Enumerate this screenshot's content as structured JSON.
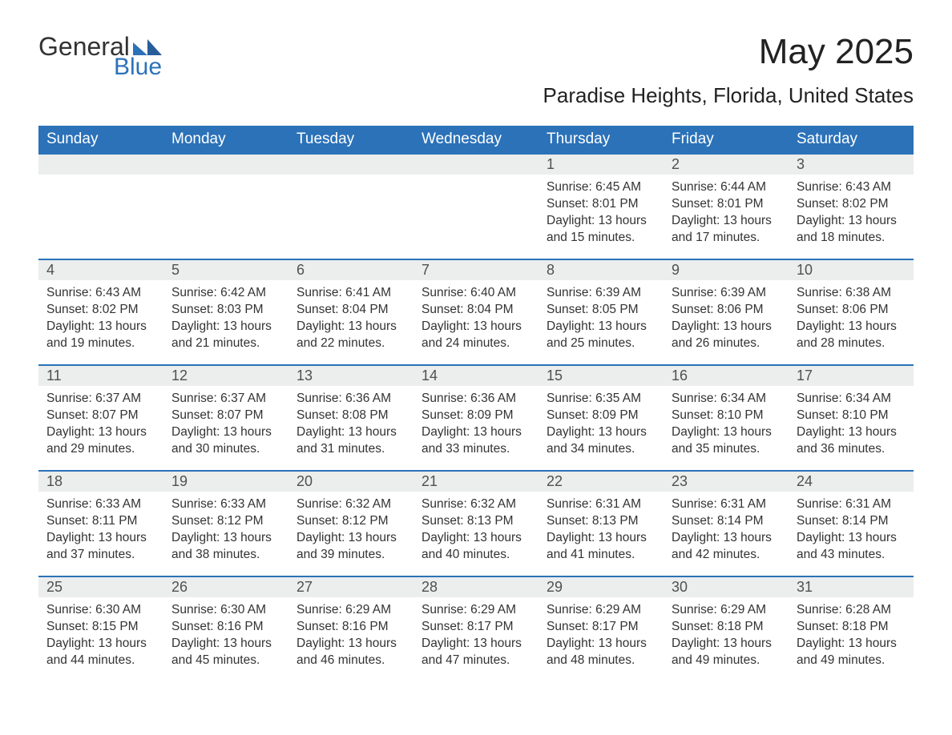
{
  "brand": {
    "word1": "General",
    "word2": "Blue",
    "colors": {
      "accent": "#2b72b9",
      "mark": "#275e99",
      "text": "#333333"
    }
  },
  "title": "May 2025",
  "location": "Paradise Heights, Florida, United States",
  "weekdays": [
    "Sunday",
    "Monday",
    "Tuesday",
    "Wednesday",
    "Thursday",
    "Friday",
    "Saturday"
  ],
  "calendar": {
    "header_bg": "#2b72b9",
    "header_fg": "#ffffff",
    "daynum_bg": "#eceded",
    "row_border": "#2b72b9"
  },
  "weeks": [
    [
      null,
      null,
      null,
      null,
      {
        "n": "1",
        "sunrise": "Sunrise: 6:45 AM",
        "sunset": "Sunset: 8:01 PM",
        "dl1": "Daylight: 13 hours",
        "dl2": "and 15 minutes."
      },
      {
        "n": "2",
        "sunrise": "Sunrise: 6:44 AM",
        "sunset": "Sunset: 8:01 PM",
        "dl1": "Daylight: 13 hours",
        "dl2": "and 17 minutes."
      },
      {
        "n": "3",
        "sunrise": "Sunrise: 6:43 AM",
        "sunset": "Sunset: 8:02 PM",
        "dl1": "Daylight: 13 hours",
        "dl2": "and 18 minutes."
      }
    ],
    [
      {
        "n": "4",
        "sunrise": "Sunrise: 6:43 AM",
        "sunset": "Sunset: 8:02 PM",
        "dl1": "Daylight: 13 hours",
        "dl2": "and 19 minutes."
      },
      {
        "n": "5",
        "sunrise": "Sunrise: 6:42 AM",
        "sunset": "Sunset: 8:03 PM",
        "dl1": "Daylight: 13 hours",
        "dl2": "and 21 minutes."
      },
      {
        "n": "6",
        "sunrise": "Sunrise: 6:41 AM",
        "sunset": "Sunset: 8:04 PM",
        "dl1": "Daylight: 13 hours",
        "dl2": "and 22 minutes."
      },
      {
        "n": "7",
        "sunrise": "Sunrise: 6:40 AM",
        "sunset": "Sunset: 8:04 PM",
        "dl1": "Daylight: 13 hours",
        "dl2": "and 24 minutes."
      },
      {
        "n": "8",
        "sunrise": "Sunrise: 6:39 AM",
        "sunset": "Sunset: 8:05 PM",
        "dl1": "Daylight: 13 hours",
        "dl2": "and 25 minutes."
      },
      {
        "n": "9",
        "sunrise": "Sunrise: 6:39 AM",
        "sunset": "Sunset: 8:06 PM",
        "dl1": "Daylight: 13 hours",
        "dl2": "and 26 minutes."
      },
      {
        "n": "10",
        "sunrise": "Sunrise: 6:38 AM",
        "sunset": "Sunset: 8:06 PM",
        "dl1": "Daylight: 13 hours",
        "dl2": "and 28 minutes."
      }
    ],
    [
      {
        "n": "11",
        "sunrise": "Sunrise: 6:37 AM",
        "sunset": "Sunset: 8:07 PM",
        "dl1": "Daylight: 13 hours",
        "dl2": "and 29 minutes."
      },
      {
        "n": "12",
        "sunrise": "Sunrise: 6:37 AM",
        "sunset": "Sunset: 8:07 PM",
        "dl1": "Daylight: 13 hours",
        "dl2": "and 30 minutes."
      },
      {
        "n": "13",
        "sunrise": "Sunrise: 6:36 AM",
        "sunset": "Sunset: 8:08 PM",
        "dl1": "Daylight: 13 hours",
        "dl2": "and 31 minutes."
      },
      {
        "n": "14",
        "sunrise": "Sunrise: 6:36 AM",
        "sunset": "Sunset: 8:09 PM",
        "dl1": "Daylight: 13 hours",
        "dl2": "and 33 minutes."
      },
      {
        "n": "15",
        "sunrise": "Sunrise: 6:35 AM",
        "sunset": "Sunset: 8:09 PM",
        "dl1": "Daylight: 13 hours",
        "dl2": "and 34 minutes."
      },
      {
        "n": "16",
        "sunrise": "Sunrise: 6:34 AM",
        "sunset": "Sunset: 8:10 PM",
        "dl1": "Daylight: 13 hours",
        "dl2": "and 35 minutes."
      },
      {
        "n": "17",
        "sunrise": "Sunrise: 6:34 AM",
        "sunset": "Sunset: 8:10 PM",
        "dl1": "Daylight: 13 hours",
        "dl2": "and 36 minutes."
      }
    ],
    [
      {
        "n": "18",
        "sunrise": "Sunrise: 6:33 AM",
        "sunset": "Sunset: 8:11 PM",
        "dl1": "Daylight: 13 hours",
        "dl2": "and 37 minutes."
      },
      {
        "n": "19",
        "sunrise": "Sunrise: 6:33 AM",
        "sunset": "Sunset: 8:12 PM",
        "dl1": "Daylight: 13 hours",
        "dl2": "and 38 minutes."
      },
      {
        "n": "20",
        "sunrise": "Sunrise: 6:32 AM",
        "sunset": "Sunset: 8:12 PM",
        "dl1": "Daylight: 13 hours",
        "dl2": "and 39 minutes."
      },
      {
        "n": "21",
        "sunrise": "Sunrise: 6:32 AM",
        "sunset": "Sunset: 8:13 PM",
        "dl1": "Daylight: 13 hours",
        "dl2": "and 40 minutes."
      },
      {
        "n": "22",
        "sunrise": "Sunrise: 6:31 AM",
        "sunset": "Sunset: 8:13 PM",
        "dl1": "Daylight: 13 hours",
        "dl2": "and 41 minutes."
      },
      {
        "n": "23",
        "sunrise": "Sunrise: 6:31 AM",
        "sunset": "Sunset: 8:14 PM",
        "dl1": "Daylight: 13 hours",
        "dl2": "and 42 minutes."
      },
      {
        "n": "24",
        "sunrise": "Sunrise: 6:31 AM",
        "sunset": "Sunset: 8:14 PM",
        "dl1": "Daylight: 13 hours",
        "dl2": "and 43 minutes."
      }
    ],
    [
      {
        "n": "25",
        "sunrise": "Sunrise: 6:30 AM",
        "sunset": "Sunset: 8:15 PM",
        "dl1": "Daylight: 13 hours",
        "dl2": "and 44 minutes."
      },
      {
        "n": "26",
        "sunrise": "Sunrise: 6:30 AM",
        "sunset": "Sunset: 8:16 PM",
        "dl1": "Daylight: 13 hours",
        "dl2": "and 45 minutes."
      },
      {
        "n": "27",
        "sunrise": "Sunrise: 6:29 AM",
        "sunset": "Sunset: 8:16 PM",
        "dl1": "Daylight: 13 hours",
        "dl2": "and 46 minutes."
      },
      {
        "n": "28",
        "sunrise": "Sunrise: 6:29 AM",
        "sunset": "Sunset: 8:17 PM",
        "dl1": "Daylight: 13 hours",
        "dl2": "and 47 minutes."
      },
      {
        "n": "29",
        "sunrise": "Sunrise: 6:29 AM",
        "sunset": "Sunset: 8:17 PM",
        "dl1": "Daylight: 13 hours",
        "dl2": "and 48 minutes."
      },
      {
        "n": "30",
        "sunrise": "Sunrise: 6:29 AM",
        "sunset": "Sunset: 8:18 PM",
        "dl1": "Daylight: 13 hours",
        "dl2": "and 49 minutes."
      },
      {
        "n": "31",
        "sunrise": "Sunrise: 6:28 AM",
        "sunset": "Sunset: 8:18 PM",
        "dl1": "Daylight: 13 hours",
        "dl2": "and 49 minutes."
      }
    ]
  ]
}
